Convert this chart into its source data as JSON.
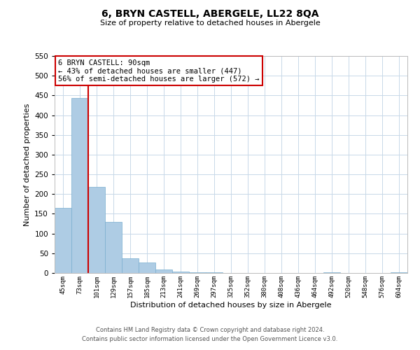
{
  "title": "6, BRYN CASTELL, ABERGELE, LL22 8QA",
  "subtitle": "Size of property relative to detached houses in Abergele",
  "xlabel": "Distribution of detached houses by size in Abergele",
  "ylabel": "Number of detached properties",
  "bar_labels": [
    "45sqm",
    "73sqm",
    "101sqm",
    "129sqm",
    "157sqm",
    "185sqm",
    "213sqm",
    "241sqm",
    "269sqm",
    "297sqm",
    "325sqm",
    "352sqm",
    "380sqm",
    "408sqm",
    "436sqm",
    "464sqm",
    "492sqm",
    "520sqm",
    "548sqm",
    "576sqm",
    "604sqm"
  ],
  "bar_values": [
    165,
    443,
    219,
    130,
    37,
    26,
    8,
    3,
    2,
    1,
    0,
    0,
    0,
    0,
    0,
    0,
    2,
    0,
    0,
    0,
    2
  ],
  "bar_color": "#aecce4",
  "bar_edge_color": "#7aaecf",
  "ylim": [
    0,
    550
  ],
  "yticks": [
    0,
    50,
    100,
    150,
    200,
    250,
    300,
    350,
    400,
    450,
    500,
    550
  ],
  "vline_color": "#cc0000",
  "annotation_title": "6 BRYN CASTELL: 90sqm",
  "annotation_line1": "← 43% of detached houses are smaller (447)",
  "annotation_line2": "56% of semi-detached houses are larger (572) →",
  "annotation_box_color": "#ffffff",
  "annotation_box_edge": "#cc0000",
  "footer_line1": "Contains HM Land Registry data © Crown copyright and database right 2024.",
  "footer_line2": "Contains public sector information licensed under the Open Government Licence v3.0.",
  "background_color": "#ffffff",
  "grid_color": "#c8d8e8"
}
